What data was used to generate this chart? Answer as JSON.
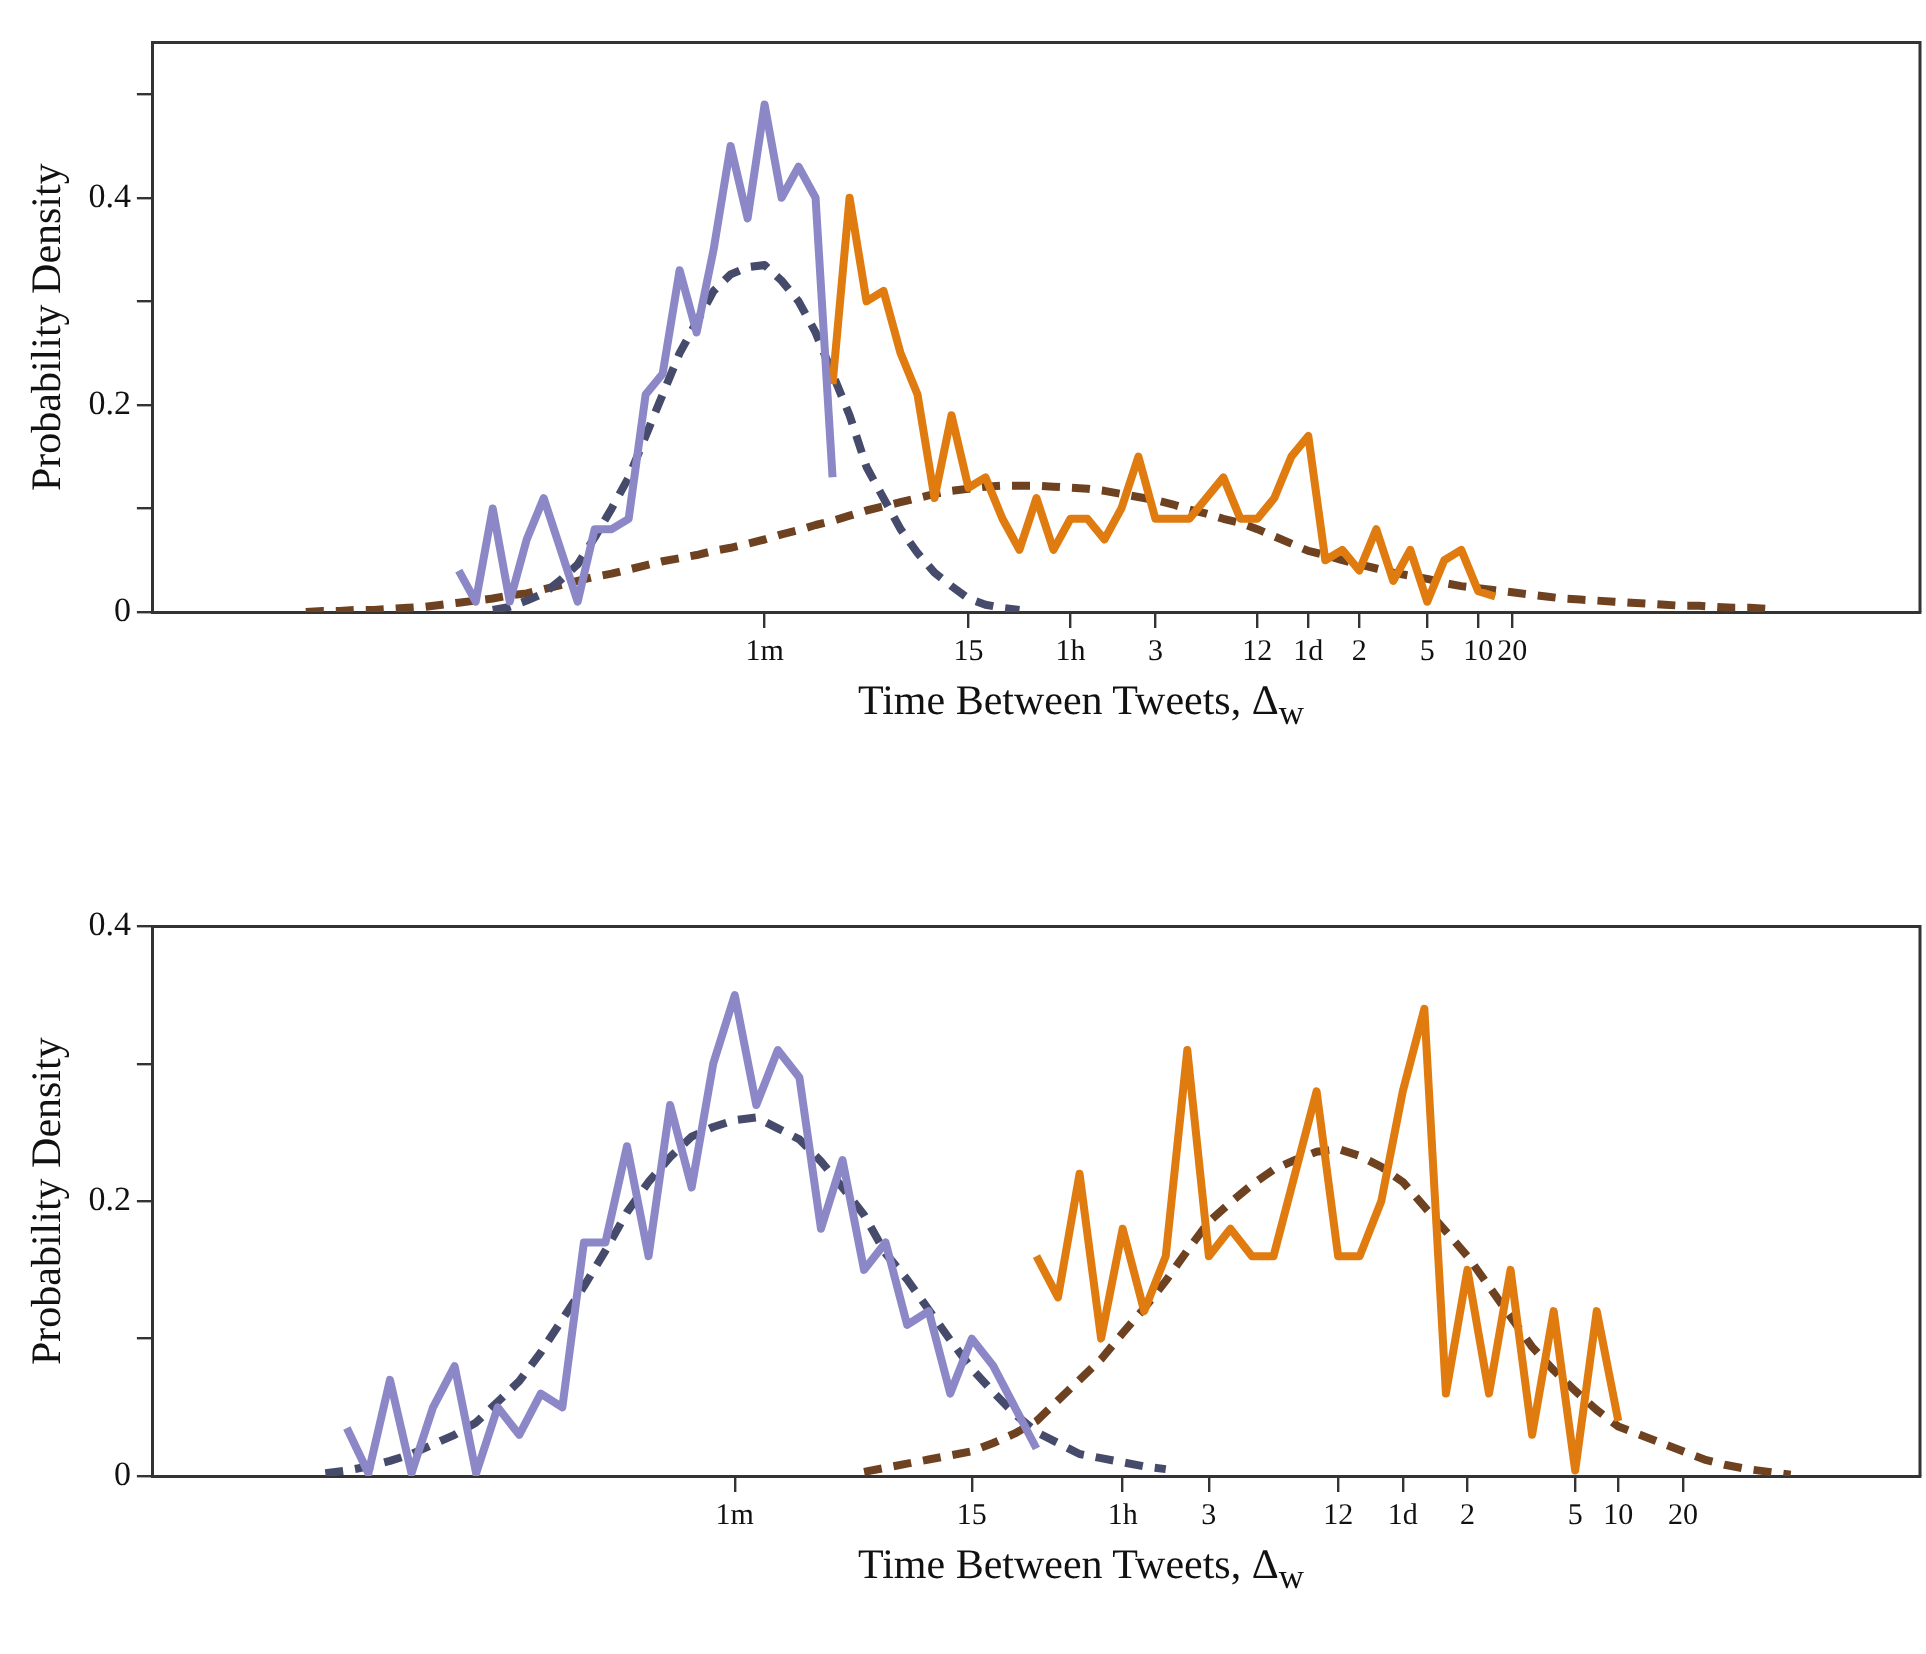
{
  "chart_data": [
    {
      "type": "line",
      "ylabel": "Probability Density",
      "xlabel": "Time Between Tweets, Δ$_{w}$",
      "marker": "none",
      "ylim": [
        0,
        0.55
      ],
      "yticks": [
        0,
        {
          "value": 0.1,
          "label": null
        },
        0.2,
        {
          "value": 0.3,
          "label": null
        },
        0.4,
        {
          "value": 0.5,
          "label": null
        }
      ],
      "categories": [
        null,
        null,
        null,
        null,
        null,
        null,
        null,
        null,
        null,
        null,
        null,
        null,
        null,
        null,
        null,
        null,
        null,
        null,
        null,
        null,
        null,
        null,
        null,
        null,
        null,
        null,
        null,
        null,
        null,
        null,
        null,
        null,
        null,
        null,
        null,
        null,
        "1m",
        null,
        null,
        null,
        null,
        null,
        null,
        null,
        null,
        null,
        null,
        null,
        "15",
        null,
        null,
        null,
        null,
        null,
        "1h",
        null,
        null,
        null,
        null,
        "3",
        null,
        null,
        null,
        null,
        null,
        "12",
        null,
        null,
        "1d",
        null,
        null,
        "2",
        null,
        null,
        null,
        "5",
        null,
        null,
        "10",
        null,
        "20",
        null,
        null,
        null,
        null,
        null,
        null,
        null,
        null,
        null,
        null,
        null,
        null,
        null,
        null,
        null,
        null,
        null,
        null,
        null,
        null,
        null,
        null,
        null,
        null
      ],
      "series": [
        {
          "color": "#8c88c8",
          "line_style": "solid",
          "values": [
            null,
            null,
            null,
            null,
            null,
            null,
            null,
            null,
            null,
            null,
            null,
            null,
            null,
            null,
            null,
            null,
            null,
            null,
            0.04,
            0.01,
            0.1,
            0.01,
            0.07,
            0.11,
            0.06,
            0.01,
            0.08,
            0.08,
            0.09,
            0.21,
            0.23,
            0.33,
            0.27,
            0.35,
            0.45,
            0.38,
            0.49,
            0.4,
            0.43,
            0.4,
            0.13,
            null,
            null,
            null,
            null,
            null,
            null,
            null,
            null,
            null,
            null,
            null,
            null,
            null,
            null,
            null,
            null,
            null,
            null,
            null,
            null,
            null,
            null,
            null,
            null,
            null,
            null,
            null,
            null,
            null,
            null,
            null,
            null,
            null,
            null,
            null,
            null,
            null,
            null,
            null,
            null,
            null,
            null,
            null,
            null,
            null,
            null,
            null,
            null,
            null,
            null,
            null,
            null,
            null,
            null,
            null,
            null,
            null,
            null,
            null,
            null,
            null,
            null,
            null,
            null
          ]
        },
        {
          "color": "#e07b10",
          "line_style": "solid",
          "values": [
            null,
            null,
            null,
            null,
            null,
            null,
            null,
            null,
            null,
            null,
            null,
            null,
            null,
            null,
            null,
            null,
            null,
            null,
            null,
            null,
            null,
            null,
            null,
            null,
            null,
            null,
            null,
            null,
            null,
            null,
            null,
            null,
            null,
            null,
            null,
            null,
            null,
            null,
            null,
            null,
            0.22,
            0.4,
            0.3,
            0.31,
            0.25,
            0.21,
            0.11,
            0.19,
            0.12,
            0.13,
            0.09,
            0.06,
            0.11,
            0.06,
            0.09,
            0.09,
            0.07,
            0.1,
            0.15,
            0.09,
            0.09,
            0.09,
            0.11,
            0.13,
            0.09,
            0.09,
            0.11,
            0.15,
            0.17,
            0.05,
            0.06,
            0.04,
            0.08,
            0.03,
            0.06,
            0.01,
            0.05,
            0.06,
            0.02,
            0.015,
            null,
            null,
            null,
            null,
            null,
            null,
            null,
            null,
            null,
            null,
            null,
            null,
            null,
            null,
            null,
            null,
            null,
            null,
            null,
            null,
            null,
            null,
            null,
            null,
            null
          ]
        },
        {
          "color": "#464b6b",
          "line_style": "dashed",
          "values": [
            null,
            null,
            null,
            null,
            null,
            null,
            null,
            null,
            null,
            null,
            null,
            null,
            null,
            null,
            null,
            null,
            null,
            null,
            null,
            null,
            0.002,
            0.005,
            0.011,
            0.018,
            0.031,
            0.046,
            0.072,
            0.1,
            0.13,
            0.17,
            0.21,
            0.25,
            0.28,
            0.31,
            0.326,
            0.333,
            0.335,
            0.32,
            0.3,
            0.27,
            0.23,
            0.19,
            0.14,
            0.11,
            0.08,
            0.057,
            0.038,
            0.025,
            0.013,
            0.007,
            0.004,
            0.002,
            null,
            null,
            null,
            null,
            null,
            null,
            null,
            null,
            null,
            null,
            null,
            null,
            null,
            null,
            null,
            null,
            null,
            null,
            null,
            null,
            null,
            null,
            null,
            null,
            null,
            null,
            null,
            null,
            null,
            null,
            null,
            null,
            null,
            null,
            null,
            null,
            null,
            null,
            null,
            null,
            null,
            null,
            null,
            null,
            null,
            null,
            null,
            null,
            null,
            null,
            null,
            null,
            null
          ]
        },
        {
          "color": "#6e4220",
          "line_style": "dashed",
          "values": [
            null,
            null,
            null,
            null,
            null,
            null,
            null,
            null,
            null,
            0,
            0.001,
            0.001,
            0.002,
            0.002,
            0.003,
            0.004,
            0.005,
            0.007,
            0.009,
            0.011,
            0.013,
            0.016,
            0.018,
            0.022,
            0.026,
            0.03,
            0.034,
            0.037,
            0.041,
            0.045,
            0.049,
            0.052,
            0.055,
            0.059,
            0.062,
            0.066,
            0.07,
            0.075,
            0.079,
            0.084,
            0.088,
            0.093,
            0.098,
            0.102,
            0.106,
            0.11,
            0.114,
            0.117,
            0.119,
            0.121,
            0.122,
            0.122,
            0.122,
            0.121,
            0.12,
            0.119,
            0.117,
            0.114,
            0.111,
            0.108,
            0.104,
            0.099,
            0.095,
            0.09,
            0.086,
            0.08,
            0.073,
            0.066,
            0.059,
            0.055,
            0.05,
            0.046,
            0.042,
            0.038,
            0.035,
            0.032,
            0.028,
            0.025,
            0.023,
            0.021,
            0.019,
            0.017,
            0.015,
            0.013,
            0.012,
            0.011,
            0.01,
            0.009,
            0.008,
            0.007,
            0.006,
            0.006,
            0.005,
            0.004,
            0.004,
            0.003,
            null,
            null,
            null,
            null,
            null,
            null,
            null,
            null,
            null
          ]
        }
      ]
    },
    {
      "type": "line",
      "ylabel": "Probability Density",
      "xlabel": "Time Between Tweets, Δ$_{w}$",
      "marker": "none",
      "ylim": [
        0,
        0.4
      ],
      "yticks": [
        0,
        {
          "value": 0.1,
          "label": null
        },
        0.2,
        {
          "value": 0.3,
          "label": null
        },
        0.4
      ],
      "categories": [
        null,
        null,
        null,
        null,
        null,
        null,
        null,
        null,
        null,
        null,
        null,
        null,
        null,
        null,
        null,
        null,
        null,
        null,
        null,
        null,
        null,
        null,
        null,
        null,
        null,
        null,
        null,
        "1m",
        null,
        null,
        null,
        null,
        null,
        null,
        null,
        null,
        null,
        null,
        "15",
        null,
        null,
        null,
        null,
        null,
        null,
        "1h",
        null,
        null,
        null,
        "3",
        null,
        null,
        null,
        null,
        null,
        "12",
        null,
        null,
        "1d",
        null,
        null,
        "2",
        null,
        null,
        null,
        null,
        "5",
        null,
        "10",
        null,
        null,
        "20",
        null,
        null,
        null,
        null,
        null,
        null,
        null,
        null,
        null,
        null,
        null
      ],
      "series": [
        {
          "color": "#8c88c8",
          "line_style": "solid",
          "values": [
            null,
            null,
            null,
            null,
            null,
            null,
            null,
            null,
            null,
            0.035,
            0.002,
            0.07,
            0.002,
            0.05,
            0.08,
            0.002,
            0.05,
            0.03,
            0.06,
            0.05,
            0.17,
            0.17,
            0.24,
            0.16,
            0.27,
            0.21,
            0.3,
            0.35,
            0.27,
            0.31,
            0.29,
            0.18,
            0.23,
            0.15,
            0.17,
            0.11,
            0.12,
            0.06,
            0.1,
            0.08,
            0.05,
            0.02,
            null,
            null,
            null,
            null,
            null,
            null,
            null,
            null,
            null,
            null,
            null,
            null,
            null,
            null,
            null,
            null,
            null,
            null,
            null,
            null,
            null,
            null,
            null,
            null,
            null,
            null,
            null,
            null,
            null,
            null,
            null,
            null,
            null,
            null,
            null,
            null,
            null,
            null,
            null,
            null,
            null
          ]
        },
        {
          "color": "#e07b10",
          "line_style": "solid",
          "values": [
            null,
            null,
            null,
            null,
            null,
            null,
            null,
            null,
            null,
            null,
            null,
            null,
            null,
            null,
            null,
            null,
            null,
            null,
            null,
            null,
            null,
            null,
            null,
            null,
            null,
            null,
            null,
            null,
            null,
            null,
            null,
            null,
            null,
            null,
            null,
            null,
            null,
            null,
            null,
            null,
            null,
            0.16,
            0.13,
            0.22,
            0.1,
            0.18,
            0.12,
            0.16,
            0.31,
            0.16,
            0.18,
            0.16,
            0.16,
            0.22,
            0.28,
            0.16,
            0.16,
            0.2,
            0.28,
            0.34,
            0.06,
            0.15,
            0.06,
            0.15,
            0.03,
            0.12,
            0.004,
            0.12,
            0.04,
            null,
            null,
            null,
            null,
            null,
            null,
            null,
            null,
            null,
            null,
            null,
            null,
            null,
            null
          ]
        },
        {
          "color": "#464b6b",
          "line_style": "dashed",
          "values": [
            null,
            null,
            null,
            null,
            null,
            null,
            null,
            null,
            0.002,
            0.004,
            0.007,
            0.011,
            0.016,
            0.023,
            0.03,
            0.039,
            0.054,
            0.069,
            0.09,
            0.114,
            0.138,
            0.164,
            0.192,
            0.214,
            0.232,
            0.247,
            0.254,
            0.259,
            0.261,
            0.253,
            0.245,
            0.229,
            0.21,
            0.19,
            0.162,
            0.143,
            0.121,
            0.099,
            0.078,
            0.061,
            0.045,
            0.032,
            0.024,
            0.016,
            0.013,
            0.01,
            0.007,
            0.005,
            null,
            null,
            null,
            null,
            null,
            null,
            null,
            null,
            null,
            null,
            null,
            null,
            null,
            null,
            null,
            null,
            null,
            null,
            null,
            null,
            null,
            null,
            null,
            null,
            null,
            null,
            null,
            null,
            null,
            null,
            null,
            null,
            null,
            null,
            null
          ]
        },
        {
          "color": "#6e4220",
          "line_style": "dashed",
          "values": [
            null,
            null,
            null,
            null,
            null,
            null,
            null,
            null,
            null,
            null,
            null,
            null,
            null,
            null,
            null,
            null,
            null,
            null,
            null,
            null,
            null,
            null,
            null,
            null,
            null,
            null,
            null,
            null,
            null,
            null,
            null,
            null,
            null,
            0.003,
            0.006,
            0.009,
            0.012,
            0.015,
            0.018,
            0.024,
            0.031,
            0.04,
            0.055,
            0.07,
            0.085,
            0.104,
            0.122,
            0.142,
            0.164,
            0.185,
            0.199,
            0.212,
            0.223,
            0.23,
            0.236,
            0.238,
            0.233,
            0.225,
            0.214,
            0.196,
            0.178,
            0.16,
            0.138,
            0.116,
            0.094,
            0.077,
            0.062,
            0.048,
            0.036,
            0.03,
            0.024,
            0.018,
            0.012,
            0.008,
            0.005,
            0.003,
            0.001,
            null,
            null,
            null,
            null,
            null,
            null
          ]
        }
      ]
    }
  ]
}
